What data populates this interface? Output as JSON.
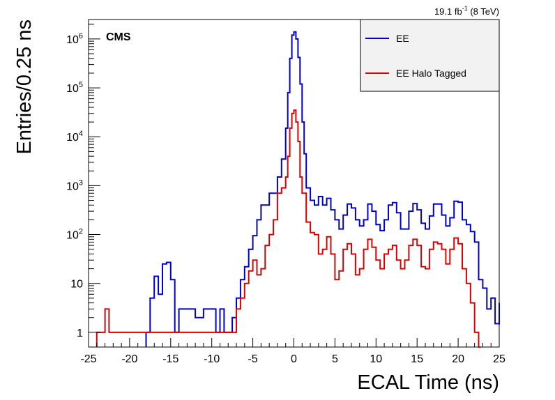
{
  "chart_data": {
    "type": "line",
    "title": "",
    "lumi_label": {
      "text": "19.1 fb",
      "sup": "-1",
      "suffix": " (8 TeV)"
    },
    "experiment_label": "CMS",
    "xlabel": "ECAL Time (ns)",
    "ylabel": "Entries/0.25 ns",
    "xlim": [
      -25,
      25
    ],
    "ylim": [
      0.5,
      2500000
    ],
    "yscale": "log",
    "grid": false,
    "legend": "top-right",
    "x_ticks": [
      "-25",
      "-20",
      "-15",
      "-10",
      "-5",
      "0",
      "5",
      "10",
      "15",
      "20",
      "25"
    ],
    "y_ticks": [
      {
        "base": "1",
        "exp": "",
        "value": 1
      },
      {
        "base": "10",
        "exp": "",
        "value": 10
      },
      {
        "base": "10",
        "exp": "2",
        "value": 100
      },
      {
        "base": "10",
        "exp": "3",
        "value": 1000
      },
      {
        "base": "10",
        "exp": "4",
        "value": 10000
      },
      {
        "base": "10",
        "exp": "5",
        "value": 100000
      },
      {
        "base": "10",
        "exp": "6",
        "value": 1000000
      }
    ],
    "series": [
      {
        "name": "EE",
        "color": "#0000cc",
        "points": [
          [
            -18,
            1
          ],
          [
            -17.5,
            5
          ],
          [
            -17,
            14
          ],
          [
            -16.5,
            6
          ],
          [
            -16,
            25
          ],
          [
            -15.5,
            27
          ],
          [
            -15,
            12
          ],
          [
            -14.5,
            1
          ],
          [
            -14,
            3
          ],
          [
            -13,
            3
          ],
          [
            -12,
            2
          ],
          [
            -11,
            3
          ],
          [
            -10,
            3
          ],
          [
            -9.5,
            1
          ],
          [
            -9,
            3
          ],
          [
            -8.5,
            1
          ],
          [
            -7.5,
            2
          ],
          [
            -7,
            5
          ],
          [
            -6.5,
            12
          ],
          [
            -6,
            22
          ],
          [
            -5.5,
            50
          ],
          [
            -5,
            95
          ],
          [
            -4.5,
            200
          ],
          [
            -4,
            400
          ],
          [
            -3,
            700
          ],
          [
            -2,
            1500
          ],
          [
            -1.5,
            3500
          ],
          [
            -1,
            15000
          ],
          [
            -0.75,
            80000
          ],
          [
            -0.5,
            400000
          ],
          [
            -0.25,
            1200000
          ],
          [
            0,
            1400000
          ],
          [
            0.25,
            1000000
          ],
          [
            0.5,
            420000
          ],
          [
            0.75,
            120000
          ],
          [
            1,
            20000
          ],
          [
            1.25,
            4500
          ],
          [
            1.5,
            900
          ],
          [
            2,
            500
          ],
          [
            2.5,
            400
          ],
          [
            3,
            600
          ],
          [
            3.5,
            400
          ],
          [
            4,
            550
          ],
          [
            4.5,
            320
          ],
          [
            5,
            200
          ],
          [
            5.5,
            130
          ],
          [
            6,
            250
          ],
          [
            6.5,
            420
          ],
          [
            7,
            350
          ],
          [
            7.5,
            200
          ],
          [
            8,
            150
          ],
          [
            8.5,
            200
          ],
          [
            9,
            420
          ],
          [
            9.5,
            300
          ],
          [
            10,
            160
          ],
          [
            10.5,
            120
          ],
          [
            11,
            200
          ],
          [
            11.5,
            400
          ],
          [
            12,
            450
          ],
          [
            12.5,
            280
          ],
          [
            13,
            130
          ],
          [
            13.5,
            130
          ],
          [
            14,
            300
          ],
          [
            14.5,
            430
          ],
          [
            15,
            320
          ],
          [
            15.5,
            170
          ],
          [
            16,
            130
          ],
          [
            16.5,
            240
          ],
          [
            17,
            420
          ],
          [
            17.5,
            420
          ],
          [
            18,
            250
          ],
          [
            18.5,
            150
          ],
          [
            19,
            220
          ],
          [
            19.5,
            480
          ],
          [
            20,
            460
          ],
          [
            20.5,
            200
          ],
          [
            21,
            160
          ],
          [
            21.5,
            115
          ],
          [
            22,
            70
          ],
          [
            22.5,
            12
          ],
          [
            23,
            8
          ],
          [
            23.5,
            3
          ],
          [
            24,
            5
          ],
          [
            24.5,
            1.5
          ],
          [
            25,
            4
          ]
        ]
      },
      {
        "name": "EE Halo Tagged",
        "color": "#dd0000",
        "points": [
          [
            -24,
            1
          ],
          [
            -23,
            3
          ],
          [
            -22.5,
            1
          ],
          [
            -16.5,
            1
          ],
          [
            -16,
            1
          ],
          [
            -15,
            1
          ],
          [
            -14.5,
            1
          ],
          [
            -8,
            1
          ],
          [
            -7,
            3
          ],
          [
            -6.5,
            5
          ],
          [
            -6,
            10
          ],
          [
            -5.5,
            18
          ],
          [
            -5,
            30
          ],
          [
            -4.5,
            15
          ],
          [
            -4,
            20
          ],
          [
            -3.5,
            60
          ],
          [
            -3,
            100
          ],
          [
            -2.5,
            200
          ],
          [
            -2,
            700
          ],
          [
            -1.5,
            900
          ],
          [
            -1,
            1500
          ],
          [
            -0.75,
            4000
          ],
          [
            -0.5,
            15000
          ],
          [
            -0.25,
            30000
          ],
          [
            0,
            35000
          ],
          [
            0.25,
            20000
          ],
          [
            0.5,
            8000
          ],
          [
            0.75,
            1500
          ],
          [
            1,
            700
          ],
          [
            1.5,
            180
          ],
          [
            2,
            110
          ],
          [
            2.5,
            100
          ],
          [
            3,
            40
          ],
          [
            3.5,
            50
          ],
          [
            4,
            90
          ],
          [
            4.5,
            40
          ],
          [
            5,
            12
          ],
          [
            5.5,
            18
          ],
          [
            6,
            50
          ],
          [
            6.5,
            65
          ],
          [
            7,
            40
          ],
          [
            7.5,
            15
          ],
          [
            8,
            20
          ],
          [
            8.5,
            50
          ],
          [
            9,
            80
          ],
          [
            9.5,
            55
          ],
          [
            10,
            30
          ],
          [
            10.5,
            20
          ],
          [
            11,
            40
          ],
          [
            11.5,
            50
          ],
          [
            12,
            60
          ],
          [
            12.5,
            30
          ],
          [
            13,
            20
          ],
          [
            13.5,
            30
          ],
          [
            14,
            60
          ],
          [
            14.5,
            80
          ],
          [
            15,
            60
          ],
          [
            15.5,
            22
          ],
          [
            16,
            20
          ],
          [
            16.5,
            50
          ],
          [
            17,
            70
          ],
          [
            17.5,
            65
          ],
          [
            18,
            50
          ],
          [
            18.5,
            25
          ],
          [
            19,
            50
          ],
          [
            19.5,
            85
          ],
          [
            20,
            65
          ],
          [
            20.5,
            20
          ],
          [
            21,
            10
          ],
          [
            21.5,
            4
          ],
          [
            22,
            1
          ],
          [
            22.5,
            0.5
          ]
        ]
      }
    ]
  }
}
